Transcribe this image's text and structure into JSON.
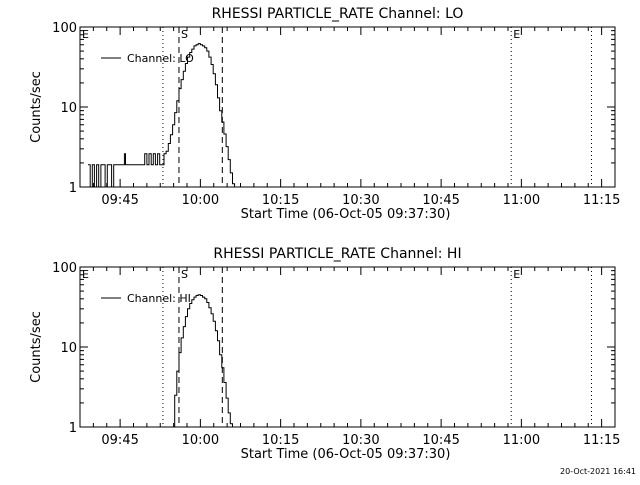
{
  "chart_data": [
    {
      "type": "line",
      "title": "RHESSI PARTICLE_RATE Channel: LO",
      "xlabel": "Start Time (06-Oct-05 09:37:30)",
      "ylabel": "Counts/sec",
      "y_scale": "log",
      "ylim": [
        1,
        100
      ],
      "y_ticks": [
        "1",
        "10",
        "100"
      ],
      "xlim_minutes": [
        0,
        100
      ],
      "x_ticks": [
        {
          "label": "09:45",
          "min": 7.5
        },
        {
          "label": "10:00",
          "min": 22.5
        },
        {
          "label": "10:15",
          "min": 37.5
        },
        {
          "label": "10:30",
          "min": 52.5
        },
        {
          "label": "10:45",
          "min": 67.5
        },
        {
          "label": "11:00",
          "min": 82.5
        },
        {
          "label": "11:15",
          "min": 97.5
        }
      ],
      "legend": {
        "label": "Channel: LO",
        "position": "top-left"
      },
      "markers": [
        {
          "label": "E",
          "min": 0,
          "style": "dotted"
        },
        {
          "label": "",
          "min": 15.5,
          "style": "dotted"
        },
        {
          "label": "S",
          "min": 18.5,
          "style": "dashed"
        },
        {
          "label": "",
          "min": 26.6,
          "style": "dashed"
        },
        {
          "label": "E",
          "min": 80.6,
          "style": "dotted"
        },
        {
          "label": "",
          "min": 95.6,
          "style": "dotted"
        }
      ],
      "series": [
        {
          "name": "Channel: LO",
          "x": [
            1.5,
            1.9,
            2.3,
            2.7,
            3.1,
            3.5,
            3.9,
            4.3,
            4.7,
            5.1,
            5.5,
            5.9,
            6.3,
            6.7,
            7.1,
            7.5,
            7.9,
            8.3,
            8.5,
            8.9,
            9.3,
            10.5,
            11.7,
            12.1,
            12.5,
            12.9,
            13.3,
            13.7,
            14.1,
            14.5,
            14.9,
            15.3,
            15.7,
            16.1,
            16.5,
            16.9,
            17.3,
            17.7,
            18.1,
            18.5,
            18.9,
            19.3,
            19.7,
            20.1,
            20.5,
            20.9,
            21.3,
            21.7,
            22.1,
            22.5,
            22.9,
            23.3,
            23.7,
            24.1,
            24.5,
            24.9,
            25.3,
            25.7,
            26.1,
            26.5,
            26.9,
            27.3,
            27.7,
            28.1,
            28.5,
            28.9,
            29.3
          ],
          "y": [
            1.9,
            1.0,
            1.9,
            1.0,
            1.9,
            1.0,
            1.9,
            1.9,
            1.0,
            1.9,
            1.9,
            1.0,
            1.9,
            1.9,
            1.9,
            1.9,
            1.9,
            2.6,
            1.9,
            1.9,
            1.9,
            1.9,
            1.9,
            2.6,
            1.9,
            2.6,
            1.9,
            2.6,
            1.9,
            2.6,
            1.9,
            1.9,
            2.6,
            2.8,
            3.5,
            4.5,
            6.0,
            8.5,
            12,
            17,
            22,
            28,
            35,
            42,
            48,
            53,
            58,
            60,
            62,
            60,
            58,
            55,
            50,
            42,
            34,
            26,
            19,
            13,
            9,
            6.5,
            4.6,
            3.2,
            2.2,
            1.5,
            1.1,
            1.0,
            1.0
          ]
        }
      ]
    },
    {
      "type": "line",
      "title": "RHESSI PARTICLE_RATE Channel: HI",
      "xlabel": "Start Time (06-Oct-05 09:37:30)",
      "ylabel": "Counts/sec",
      "y_scale": "log",
      "ylim": [
        1,
        100
      ],
      "y_ticks": [
        "1",
        "10",
        "100"
      ],
      "xlim_minutes": [
        0,
        100
      ],
      "x_ticks": [
        {
          "label": "09:45",
          "min": 7.5
        },
        {
          "label": "10:00",
          "min": 22.5
        },
        {
          "label": "10:15",
          "min": 37.5
        },
        {
          "label": "10:30",
          "min": 52.5
        },
        {
          "label": "10:45",
          "min": 67.5
        },
        {
          "label": "11:00",
          "min": 82.5
        },
        {
          "label": "11:15",
          "min": 97.5
        }
      ],
      "legend": {
        "label": "Channel: HI",
        "position": "top-left"
      },
      "markers": [
        {
          "label": "E",
          "min": 0,
          "style": "dotted"
        },
        {
          "label": "",
          "min": 15.5,
          "style": "dotted"
        },
        {
          "label": "S",
          "min": 18.5,
          "style": "dashed"
        },
        {
          "label": "",
          "min": 26.6,
          "style": "dashed"
        },
        {
          "label": "E",
          "min": 80.6,
          "style": "dotted"
        },
        {
          "label": "",
          "min": 95.6,
          "style": "dotted"
        }
      ],
      "series": [
        {
          "name": "Channel: HI",
          "x": [
            17.3,
            17.7,
            18.1,
            18.5,
            18.9,
            19.3,
            19.7,
            20.1,
            20.5,
            20.9,
            21.3,
            21.7,
            22.1,
            22.5,
            22.9,
            23.3,
            23.7,
            24.1,
            24.5,
            24.9,
            25.3,
            25.7,
            26.1,
            26.5,
            26.9,
            27.3,
            27.7,
            28.1,
            28.5,
            28.9
          ],
          "y": [
            1.0,
            2.5,
            5.0,
            8.5,
            13,
            18,
            24,
            30,
            35,
            39,
            42,
            44,
            45,
            44,
            42,
            40,
            36,
            31,
            26,
            21,
            16,
            12,
            8,
            5.5,
            3.6,
            2.3,
            1.5,
            1.1,
            1.0,
            1.0
          ]
        }
      ]
    }
  ],
  "footer": {
    "timestamp": "20-Oct-2021 16:41"
  }
}
